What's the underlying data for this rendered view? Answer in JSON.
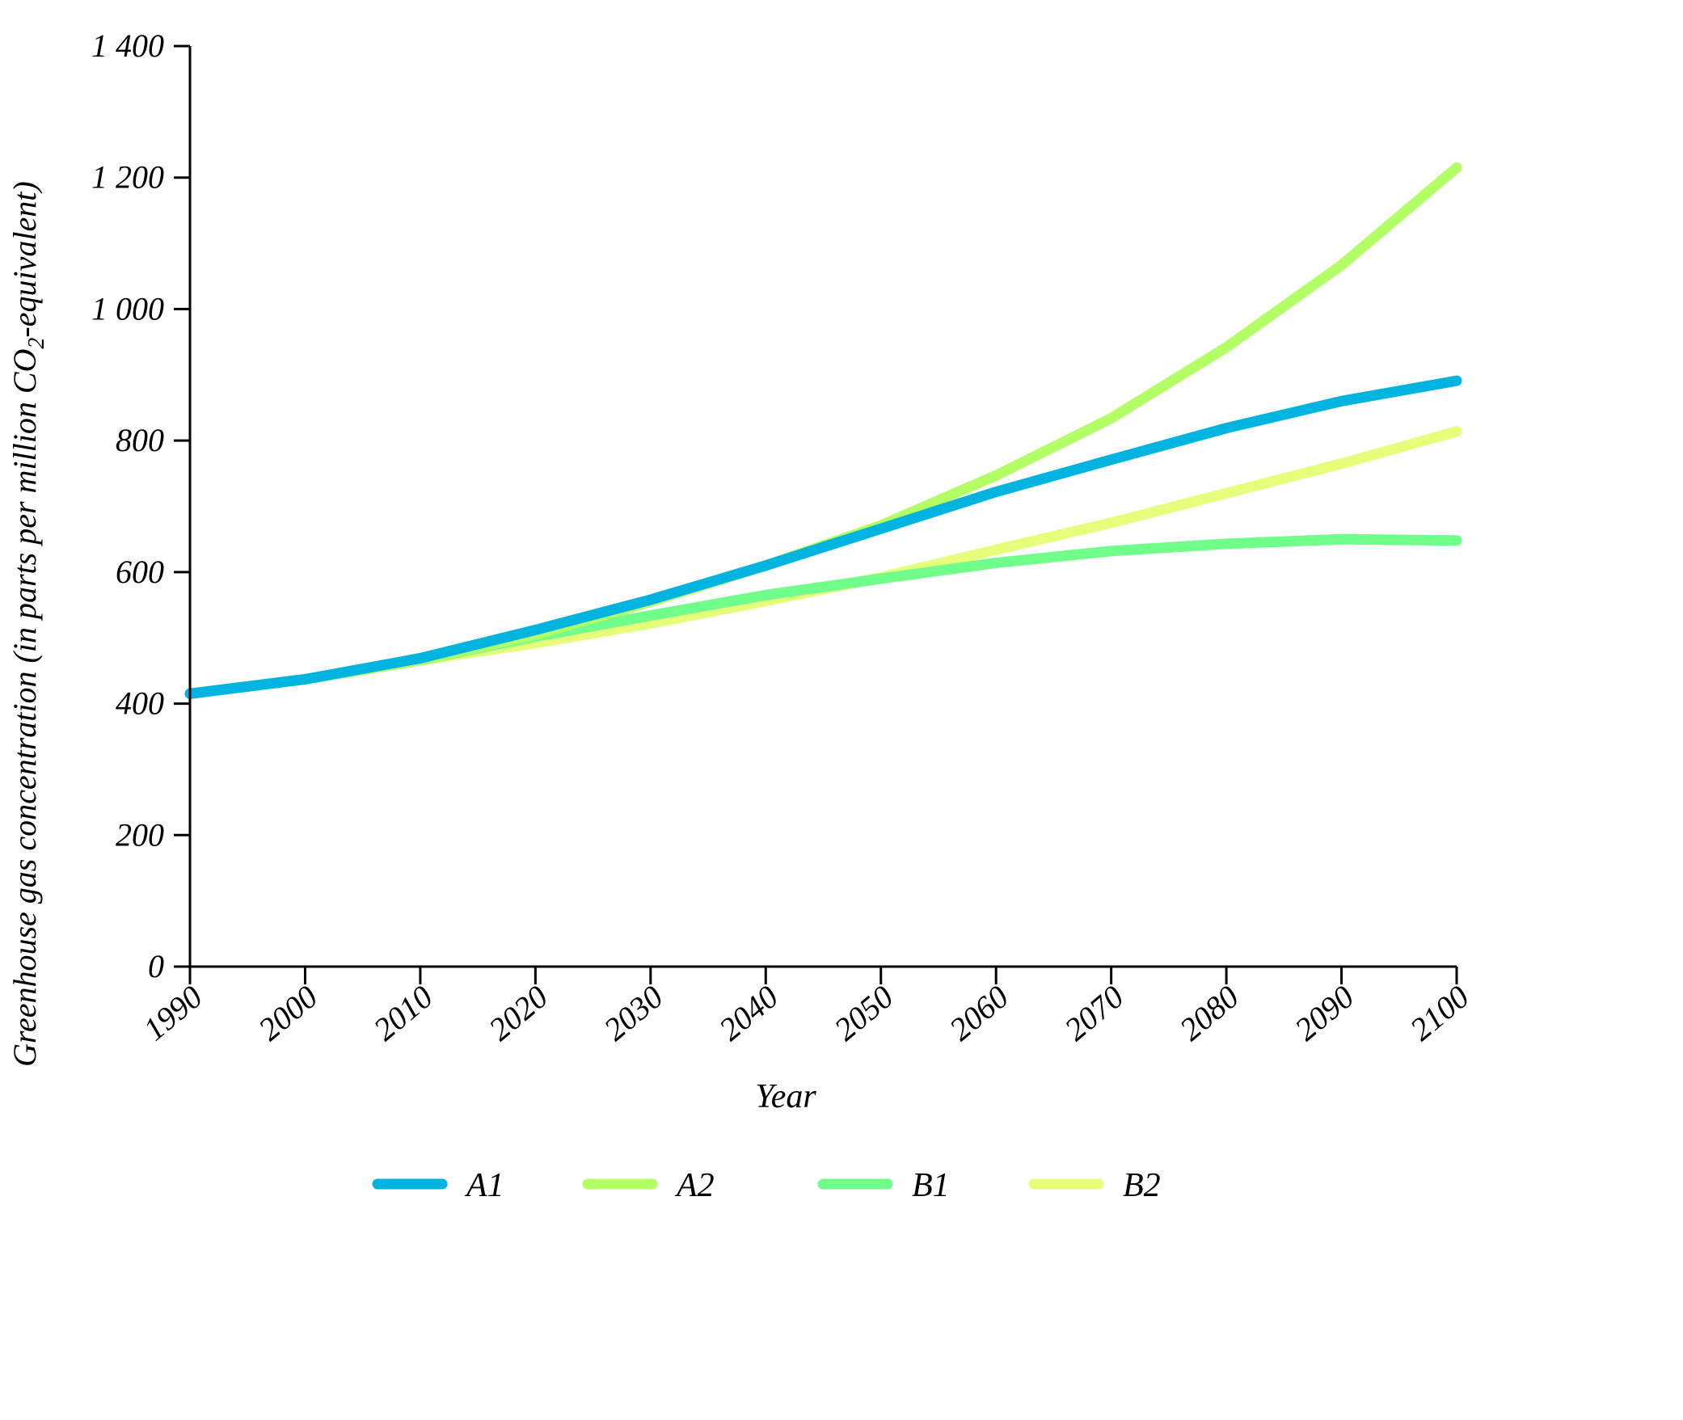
{
  "chart_data": {
    "type": "line",
    "title": "",
    "xlabel": "Year",
    "ylabel_parts": [
      "Greenhouse gas concentration (in parts per million CO",
      "2",
      "-equivalent)"
    ],
    "x": [
      1990,
      2000,
      2010,
      2020,
      2030,
      2040,
      2050,
      2060,
      2070,
      2080,
      2090,
      2100
    ],
    "x_tick_labels": [
      "1990",
      "2000",
      "2010",
      "2020",
      "2030",
      "2040",
      "2050",
      "2060",
      "2070",
      "2080",
      "2090",
      "2100"
    ],
    "y_ticks": [
      0,
      200,
      400,
      600,
      800,
      1000,
      1200,
      1400
    ],
    "y_tick_labels": [
      "0",
      "200",
      "400",
      "600",
      "800",
      "1 000",
      "1 200",
      "1 400"
    ],
    "xlim": [
      1990,
      2100
    ],
    "ylim": [
      0,
      1400
    ],
    "grid": false,
    "legend_position": "bottom",
    "series": [
      {
        "name": "A1",
        "color": "#00b4e0",
        "values": [
          415,
          437,
          469,
          512,
          558,
          610,
          666,
          722,
          771,
          819,
          860,
          891
        ]
      },
      {
        "name": "A2",
        "color": "#b2ff66",
        "values": [
          415,
          437,
          466,
          505,
          555,
          610,
          671,
          747,
          834,
          942,
          1067,
          1215
        ]
      },
      {
        "name": "B1",
        "color": "#70ff8a",
        "values": [
          415,
          437,
          466,
          502,
          534,
          565,
          590,
          614,
          632,
          643,
          650,
          648
        ]
      },
      {
        "name": "B2",
        "color": "#e6ff7a",
        "values": [
          415,
          437,
          466,
          492,
          522,
          556,
          592,
          634,
          675,
          720,
          765,
          814
        ]
      }
    ]
  }
}
